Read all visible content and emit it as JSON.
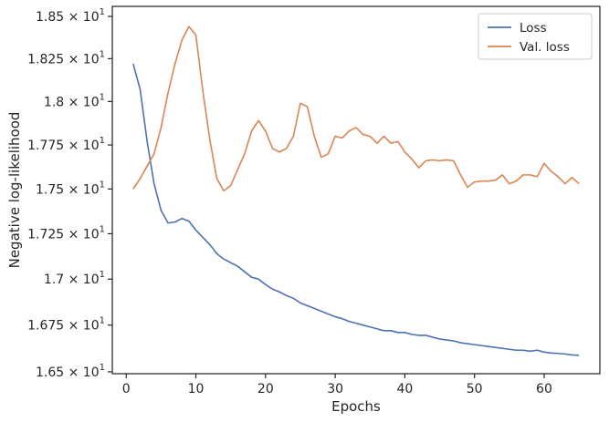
{
  "chart_data": {
    "type": "line",
    "title": "",
    "xlabel": "Epochs",
    "ylabel": "Negative log-likelihood",
    "xlim": [
      -2,
      68
    ],
    "ylim": [
      16.49,
      18.56
    ],
    "y_scale": "log",
    "grid": false,
    "legend_position": "top-right",
    "x_ticks": [
      0,
      10,
      20,
      30,
      40,
      50,
      60
    ],
    "x_tick_labels": [
      "0",
      "10",
      "20",
      "30",
      "40",
      "50",
      "60"
    ],
    "y_ticks": [
      16.5,
      16.75,
      17.0,
      17.25,
      17.5,
      17.75,
      18.0,
      18.25,
      18.5
    ],
    "y_tick_labels": [
      {
        "mantissa": "1.65",
        "base": "10",
        "exp": "1"
      },
      {
        "mantissa": "1.675",
        "base": "10",
        "exp": "1"
      },
      {
        "mantissa": "1.7",
        "base": "10",
        "exp": "1"
      },
      {
        "mantissa": "1.725",
        "base": "10",
        "exp": "1"
      },
      {
        "mantissa": "1.75",
        "base": "10",
        "exp": "1"
      },
      {
        "mantissa": "1.775",
        "base": "10",
        "exp": "1"
      },
      {
        "mantissa": "1.8",
        "base": "10",
        "exp": "1"
      },
      {
        "mantissa": "1.825",
        "base": "10",
        "exp": "1"
      },
      {
        "mantissa": "1.85",
        "base": "10",
        "exp": "1"
      }
    ],
    "x": [
      1,
      2,
      3,
      4,
      5,
      6,
      7,
      8,
      9,
      10,
      11,
      12,
      13,
      14,
      15,
      16,
      17,
      18,
      19,
      20,
      21,
      22,
      23,
      24,
      25,
      26,
      27,
      28,
      29,
      30,
      31,
      32,
      33,
      34,
      35,
      36,
      37,
      38,
      39,
      40,
      41,
      42,
      43,
      44,
      45,
      46,
      47,
      48,
      49,
      50,
      51,
      52,
      53,
      54,
      55,
      56,
      57,
      58,
      59,
      60,
      61,
      62,
      63,
      64,
      65
    ],
    "series": [
      {
        "name": "Loss",
        "color": "#4c72b0",
        "values": [
          18.22,
          18.07,
          17.77,
          17.53,
          17.38,
          17.31,
          17.315,
          17.335,
          17.32,
          17.27,
          17.23,
          17.19,
          17.14,
          17.11,
          17.09,
          17.07,
          17.04,
          17.01,
          17.0,
          16.97,
          16.945,
          16.93,
          16.91,
          16.895,
          16.87,
          16.855,
          16.84,
          16.825,
          16.81,
          16.795,
          16.785,
          16.77,
          16.76,
          16.75,
          16.74,
          16.73,
          16.72,
          16.72,
          16.71,
          16.71,
          16.7,
          16.695,
          16.695,
          16.685,
          16.675,
          16.67,
          16.665,
          16.655,
          16.65,
          16.645,
          16.64,
          16.635,
          16.63,
          16.625,
          16.62,
          16.615,
          16.615,
          16.61,
          16.615,
          16.605,
          16.6,
          16.598,
          16.595,
          16.59,
          16.588
        ]
      },
      {
        "name": "Val. loss",
        "color": "#dd8452",
        "values": [
          17.5,
          17.56,
          17.63,
          17.7,
          17.85,
          18.05,
          18.22,
          18.36,
          18.44,
          18.39,
          18.06,
          17.78,
          17.56,
          17.49,
          17.52,
          17.61,
          17.7,
          17.83,
          17.89,
          17.83,
          17.73,
          17.71,
          17.73,
          17.8,
          17.99,
          17.97,
          17.8,
          17.68,
          17.7,
          17.8,
          17.79,
          17.83,
          17.85,
          17.81,
          17.8,
          17.76,
          17.8,
          17.76,
          17.77,
          17.71,
          17.67,
          17.62,
          17.66,
          17.665,
          17.66,
          17.665,
          17.66,
          17.58,
          17.51,
          17.54,
          17.545,
          17.545,
          17.55,
          17.58,
          17.53,
          17.545,
          17.58,
          17.58,
          17.57,
          17.645,
          17.6,
          17.57,
          17.53,
          17.565,
          17.53
        ]
      }
    ]
  }
}
